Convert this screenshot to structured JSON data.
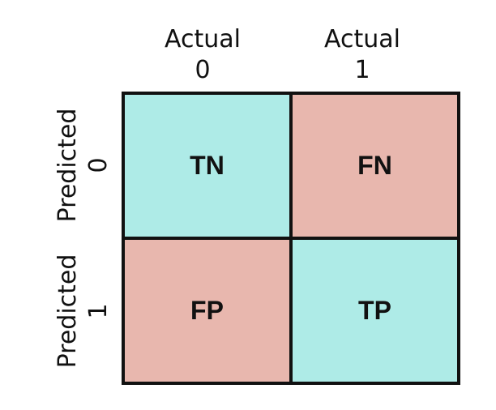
{
  "columns": [
    {
      "line1": "Actual",
      "line2": "0"
    },
    {
      "line1": "Actual",
      "line2": "1"
    }
  ],
  "rows": [
    {
      "line1": "Predicted",
      "line2": "0"
    },
    {
      "line1": "Predicted",
      "line2": "1"
    }
  ],
  "cells": [
    [
      {
        "label": "TN",
        "color": "#aeebe7"
      },
      {
        "label": "FN",
        "color": "#e8b7ae"
      }
    ],
    [
      {
        "label": "FP",
        "color": "#e8b7ae"
      },
      {
        "label": "TP",
        "color": "#aeebe7"
      }
    ]
  ]
}
